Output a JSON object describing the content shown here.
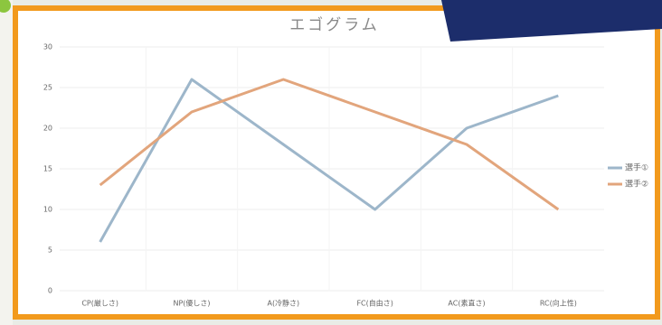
{
  "chart_data": {
    "type": "line",
    "title": "エゴグラム",
    "categories": [
      "CP(厳しさ)",
      "NP(優しさ)",
      "A(冷静さ)",
      "FC(自由さ)",
      "AC(素直さ)",
      "RC(向上性)"
    ],
    "series": [
      {
        "name": "選手①",
        "color": "#9db6ca",
        "values": [
          6,
          26,
          18,
          10,
          20,
          24
        ]
      },
      {
        "name": "選手②",
        "color": "#e2a57c",
        "values": [
          13,
          22,
          26,
          22,
          18,
          10
        ]
      }
    ],
    "ylim": [
      0,
      30
    ],
    "yticks": [
      0,
      5,
      10,
      15,
      20,
      25,
      30
    ],
    "grid": true,
    "legend": "right"
  }
}
